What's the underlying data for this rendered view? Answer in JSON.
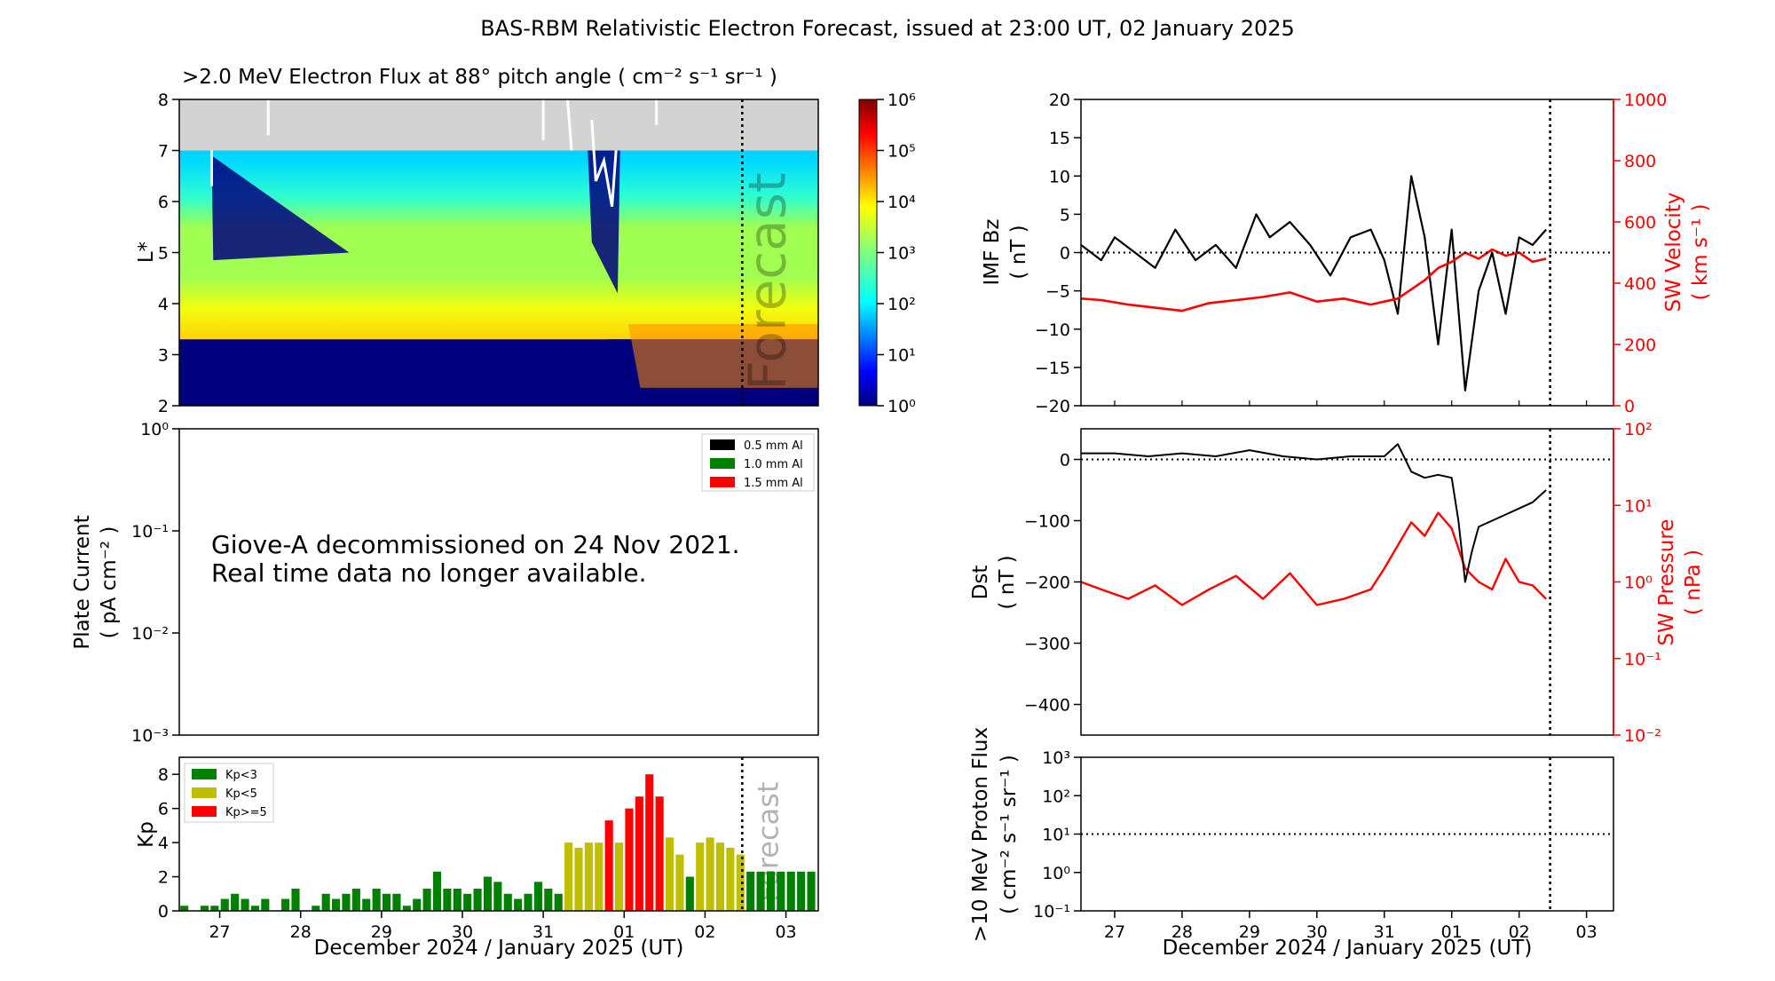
{
  "figure_title": "BAS-RBM Relativistic Electron Forecast, issued at 23:00 UT, 02 January 2025",
  "colors": {
    "black": "#000000",
    "red": "#ff0000",
    "green": "#008000",
    "olive": "#bfbf00",
    "grey": "#d3d3d3",
    "navy": "#00007f"
  },
  "time_axis": {
    "xlabel": "December 2024 / January 2025 (UT)",
    "ticks": [
      "27",
      "28",
      "29",
      "30",
      "31",
      "01",
      "02",
      "03"
    ],
    "tick_values": [
      1,
      2,
      3,
      4,
      5,
      6,
      7,
      8
    ],
    "range": [
      0.5,
      8.4
    ],
    "forecast_start": 7.46
  },
  "chart_data": [
    {
      "type": "heatmap",
      "id": "electron-flux",
      "title": ">2.0 MeV Electron Flux at 88° pitch angle ( cm⁻² s⁻¹ sr⁻¹ )",
      "ylabel": "L*",
      "ylim": [
        2,
        8
      ],
      "yticks": [
        "2",
        "3",
        "4",
        "5",
        "6",
        "7",
        "8"
      ],
      "forecast_label": "Forecast",
      "colorbar": {
        "scale": "log",
        "range": [
          1,
          1000000
        ],
        "ticks": [
          "10⁰",
          "10¹",
          "10²",
          "10³",
          "10⁴",
          "10⁵",
          "10⁶"
        ]
      }
    },
    {
      "type": "line",
      "id": "plate-current",
      "ylabel": "Plate Current",
      "yunit": "( pA cm⁻² )",
      "yscale": "log",
      "ylim": [
        0.001,
        1
      ],
      "yticks": [
        "10⁻³",
        "10⁻²",
        "10⁻¹",
        "10⁰"
      ],
      "legend": [
        "0.5 mm Al",
        "1.0 mm Al",
        "1.5 mm Al"
      ],
      "legend_position": "top-right",
      "message": [
        "Giove-A decommissioned on 24 Nov 2021.",
        "Real time data no longer available."
      ]
    },
    {
      "type": "bar",
      "id": "kp-index",
      "ylabel": "Kp",
      "ylim": [
        0,
        9
      ],
      "yticks": [
        "0",
        "2",
        "4",
        "6",
        "8"
      ],
      "legend": [
        "Kp<3",
        "Kp<5",
        "Kp>=5"
      ],
      "legend_position": "top-left",
      "forecast_label": "Forecast",
      "bar_width_days": 0.1,
      "x": [
        0.5625,
        0.6875,
        0.8125,
        0.9375,
        1.0625,
        1.1875,
        1.3125,
        1.4375,
        1.5625,
        1.6875,
        1.8125,
        1.9375,
        2.0625,
        2.1875,
        2.3125,
        2.4375,
        2.5625,
        2.6875,
        2.8125,
        2.9375,
        3.0625,
        3.1875,
        3.3125,
        3.4375,
        3.5625,
        3.6875,
        3.8125,
        3.9375,
        4.0625,
        4.1875,
        4.3125,
        4.4375,
        4.5625,
        4.6875,
        4.8125,
        4.9375,
        5.0625,
        5.1875,
        5.3125,
        5.4375,
        5.5625,
        5.6875,
        5.8125,
        5.9375,
        6.0625,
        6.1875,
        6.3125,
        6.4375,
        6.5625,
        6.6875,
        6.8125,
        6.9375,
        7.0625,
        7.1875,
        7.3125,
        7.4375,
        7.5625,
        7.6875,
        7.8125,
        7.9375,
        8.0625,
        8.1875,
        8.3125
      ],
      "values": [
        0.3,
        0,
        0.3,
        0.3,
        0.7,
        1.0,
        0.7,
        0.3,
        0.7,
        0,
        0.7,
        1.3,
        0,
        0.3,
        1.0,
        0.7,
        1.0,
        1.3,
        0.7,
        1.3,
        1.0,
        1.0,
        0.3,
        0.7,
        1.3,
        2.3,
        1.3,
        1.3,
        1.0,
        1.3,
        2.0,
        1.7,
        1.0,
        0.7,
        1.0,
        1.7,
        1.3,
        1.0,
        4.0,
        3.7,
        4.0,
        4.0,
        5.3,
        4.0,
        6.0,
        6.7,
        8.0,
        6.7,
        4.3,
        3.3,
        2.0,
        4.0,
        4.3,
        4.0,
        3.7,
        3.3,
        2.3,
        2.3,
        2.3,
        2.3,
        2.3,
        2.3,
        2.3
      ]
    },
    {
      "type": "line",
      "id": "imf-sw-velocity",
      "ylabel": "IMF Bz",
      "yunit": "( nT )",
      "ylim": [
        -20,
        20
      ],
      "yticks": [
        "−20",
        "−15",
        "−10",
        "−5",
        "0",
        "5",
        "10",
        "15",
        "20"
      ],
      "y2label": "SW Velocity",
      "y2unit": "( km s⁻¹ )",
      "y2lim": [
        0,
        1000
      ],
      "y2ticks": [
        "0",
        "200",
        "400",
        "600",
        "800",
        "1000"
      ],
      "series": [
        {
          "color": "#000000",
          "x": [
            0.5,
            0.8,
            1.0,
            1.3,
            1.6,
            1.9,
            2.2,
            2.5,
            2.8,
            3.1,
            3.3,
            3.6,
            3.9,
            4.2,
            4.5,
            4.8,
            5.0,
            5.2,
            5.4,
            5.6,
            5.8,
            6.0,
            6.2,
            6.4,
            6.6,
            6.8,
            7.0,
            7.2,
            7.4
          ],
          "y": [
            1,
            -1,
            2,
            0,
            -2,
            3,
            -1,
            1,
            -2,
            5,
            2,
            4,
            1,
            -3,
            2,
            3,
            -1,
            -8,
            10,
            2,
            -12,
            3,
            -18,
            -5,
            0,
            -8,
            2,
            1,
            3
          ]
        },
        {
          "color": "#ff0000",
          "x": [
            0.5,
            0.8,
            1.2,
            1.6,
            2.0,
            2.4,
            2.8,
            3.2,
            3.6,
            4.0,
            4.4,
            4.8,
            5.0,
            5.2,
            5.4,
            5.6,
            5.8,
            6.0,
            6.2,
            6.4,
            6.6,
            6.8,
            7.0,
            7.2,
            7.4
          ],
          "y": [
            350,
            345,
            330,
            320,
            310,
            335,
            345,
            355,
            370,
            340,
            350,
            330,
            340,
            350,
            380,
            410,
            450,
            470,
            500,
            480,
            510,
            490,
            500,
            470,
            480
          ]
        }
      ]
    },
    {
      "type": "line",
      "id": "dst-sw-pressure",
      "ylabel": "Dst",
      "yunit": "( nT )",
      "ylim": [
        -450,
        50
      ],
      "yticks": [
        "−400",
        "−300",
        "−200",
        "−100",
        "0"
      ],
      "y2label": "SW Pressure",
      "y2unit": "( nPa )",
      "y2scale": "log",
      "y2lim": [
        0.01,
        100
      ],
      "y2ticks": [
        "10⁻²",
        "10⁻¹",
        "10⁰",
        "10¹",
        "10²"
      ],
      "series": [
        {
          "color": "#000000",
          "x": [
            0.5,
            1.0,
            1.5,
            2.0,
            2.5,
            3.0,
            3.5,
            4.0,
            4.5,
            5.0,
            5.2,
            5.4,
            5.6,
            5.8,
            6.0,
            6.1,
            6.2,
            6.3,
            6.4,
            6.6,
            6.8,
            7.0,
            7.2,
            7.4
          ],
          "y": [
            10,
            10,
            5,
            10,
            5,
            15,
            5,
            0,
            5,
            5,
            25,
            -20,
            -30,
            -25,
            -30,
            -100,
            -200,
            -150,
            -110,
            -100,
            -90,
            -80,
            -70,
            -50
          ]
        },
        {
          "color": "#ff0000",
          "x": [
            0.5,
            0.8,
            1.2,
            1.6,
            2.0,
            2.4,
            2.8,
            3.2,
            3.6,
            4.0,
            4.4,
            4.8,
            5.0,
            5.2,
            5.4,
            5.6,
            5.8,
            6.0,
            6.2,
            6.4,
            6.6,
            6.8,
            7.0,
            7.2,
            7.4
          ],
          "y": [
            1.0,
            0.8,
            0.6,
            0.9,
            0.5,
            0.8,
            1.2,
            0.6,
            1.3,
            0.5,
            0.6,
            0.8,
            1.5,
            3.0,
            6.0,
            4.0,
            8.0,
            5.0,
            1.5,
            1.0,
            0.8,
            2.0,
            1.0,
            0.9,
            0.6
          ]
        }
      ]
    },
    {
      "type": "line",
      "id": "proton-flux",
      "ylabel": ">10 MeV Proton Flux",
      "yunit": "( cm⁻² s⁻¹ sr⁻¹ )",
      "yscale": "log",
      "ylim": [
        0.1,
        1000
      ],
      "yticks": [
        "10⁻¹",
        "10⁰",
        "10¹",
        "10²",
        "10³"
      ],
      "threshold": 10,
      "series": []
    }
  ]
}
